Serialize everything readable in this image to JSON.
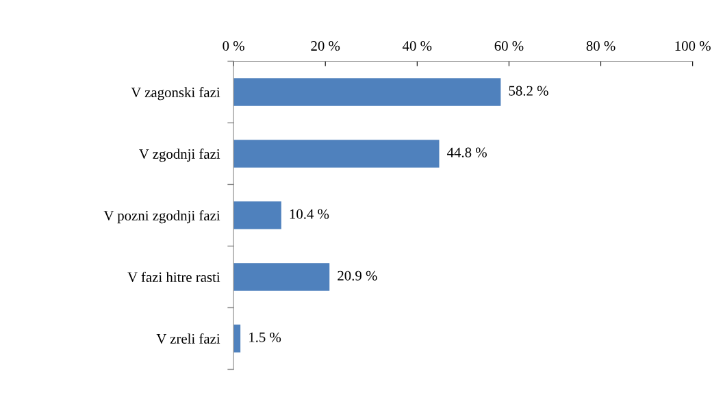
{
  "chart_data": {
    "type": "bar",
    "orientation": "horizontal",
    "categories": [
      "V zagonski fazi",
      "V zgodnji fazi",
      "V pozni zgodnji fazi",
      "V fazi hitre rasti",
      "V zreli fazi"
    ],
    "values": [
      58.2,
      44.8,
      10.4,
      20.9,
      1.5
    ],
    "value_labels": [
      "58.2 %",
      "44.8 %",
      "10.4 %",
      "20.9 %",
      "1.5 %"
    ],
    "color": "#4f81bd",
    "xlim": [
      0,
      100
    ],
    "xticks": [
      {
        "value": 0,
        "label": "0 %"
      },
      {
        "value": 20,
        "label": "20 %"
      },
      {
        "value": 40,
        "label": "40 %"
      },
      {
        "value": 60,
        "label": "60 %"
      },
      {
        "value": 80,
        "label": "80 %"
      },
      {
        "value": 100,
        "label": "100 %"
      }
    ],
    "grid": false,
    "legend": false
  }
}
